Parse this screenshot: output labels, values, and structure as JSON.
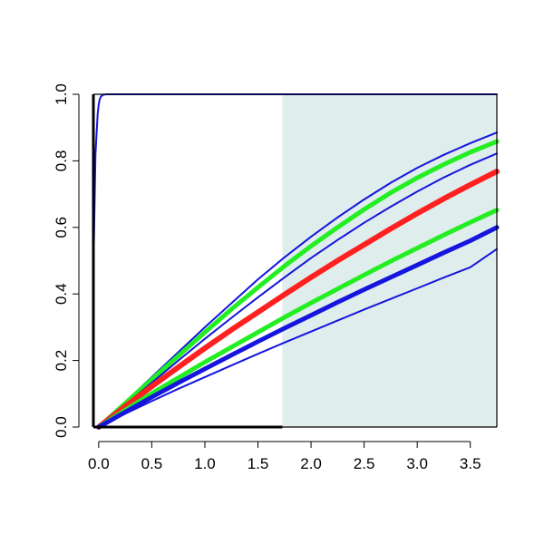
{
  "chart_data": {
    "type": "line",
    "title": "",
    "xlabel": "",
    "ylabel": "",
    "xlim": [
      -0.05,
      3.75
    ],
    "ylim": [
      0,
      1
    ],
    "x_ticks": [
      0,
      0.5,
      1,
      1.5,
      2,
      2.5,
      3,
      3.5
    ],
    "x_tick_labels": [
      "0.0",
      "0.5",
      "1.0",
      "1.5",
      "2.0",
      "2.5",
      "3.0",
      "3.5"
    ],
    "y_ticks": [
      0,
      0.2,
      0.4,
      0.6,
      0.8,
      1
    ],
    "y_tick_labels": [
      "0.0",
      "0.2",
      "0.4",
      "0.6",
      "0.8",
      "1.0"
    ],
    "shaded_region": {
      "x_from": 1.73,
      "x_to": 3.75,
      "color": "#e0eded"
    },
    "grid": false,
    "legend": "none",
    "colors": {
      "red": "#ff2020",
      "green": "#22ee22",
      "blue": "#1515dd"
    },
    "series": [
      {
        "color": "blue",
        "width": 2,
        "x": [
          -0.05,
          -0.03,
          -0.01,
          0,
          0.01,
          0.02,
          0.04,
          0.07,
          0.1,
          0.2,
          3.75
        ],
        "y": [
          0.47,
          0.82,
          0.94,
          0.97,
          0.985,
          0.993,
          0.998,
          1,
          1,
          1,
          1
        ]
      },
      {
        "color": "blue",
        "width": 2,
        "x": [
          0,
          0.25,
          0.5,
          0.75,
          1,
          1.25,
          1.5,
          1.75,
          2,
          2.25,
          2.5,
          2.75,
          3,
          3.25,
          3.5,
          3.75
        ],
        "y": [
          0,
          0.075,
          0.15,
          0.225,
          0.3,
          0.372,
          0.444,
          0.51,
          0.572,
          0.63,
          0.684,
          0.734,
          0.779,
          0.818,
          0.853,
          0.885
        ]
      },
      {
        "color": "green",
        "width": 5,
        "x": [
          0,
          0.25,
          0.5,
          0.75,
          1,
          1.25,
          1.5,
          1.75,
          2,
          2.25,
          2.5,
          2.75,
          3,
          3.25,
          3.5,
          3.75
        ],
        "y": [
          0,
          0.071,
          0.143,
          0.214,
          0.285,
          0.354,
          0.42,
          0.484,
          0.544,
          0.6,
          0.654,
          0.704,
          0.749,
          0.789,
          0.826,
          0.858
        ]
      },
      {
        "color": "blue",
        "width": 2,
        "x": [
          0,
          0.25,
          0.5,
          0.75,
          1,
          1.25,
          1.5,
          1.75,
          2,
          2.25,
          2.5,
          2.75,
          3,
          3.25,
          3.5,
          3.75
        ],
        "y": [
          0,
          0.066,
          0.133,
          0.2,
          0.265,
          0.328,
          0.39,
          0.45,
          0.508,
          0.562,
          0.614,
          0.662,
          0.708,
          0.75,
          0.788,
          0.822
        ]
      },
      {
        "color": "red",
        "width": 6,
        "x": [
          0,
          0.25,
          0.5,
          0.75,
          1,
          1.25,
          1.5,
          1.75,
          2,
          2.25,
          2.5,
          2.75,
          3,
          3.25,
          3.5,
          3.75
        ],
        "y": [
          0,
          0.062,
          0.122,
          0.18,
          0.237,
          0.292,
          0.345,
          0.398,
          0.45,
          0.5,
          0.548,
          0.596,
          0.642,
          0.686,
          0.728,
          0.768
        ]
      },
      {
        "color": "green",
        "width": 5,
        "x": [
          0,
          0.25,
          0.5,
          0.75,
          1,
          1.25,
          1.5,
          1.75,
          2,
          2.25,
          2.5,
          2.75,
          3,
          3.25,
          3.5,
          3.75
        ],
        "y": [
          0,
          0.051,
          0.101,
          0.148,
          0.195,
          0.24,
          0.285,
          0.33,
          0.373,
          0.415,
          0.457,
          0.498,
          0.538,
          0.577,
          0.615,
          0.652
        ]
      },
      {
        "color": "blue",
        "width": 5,
        "x": [
          0,
          0.25,
          0.5,
          0.75,
          1,
          1.25,
          1.5,
          1.75,
          2,
          2.25,
          2.5,
          2.75,
          3,
          3.25,
          3.5,
          3.75
        ],
        "y": [
          0,
          0.045,
          0.09,
          0.133,
          0.175,
          0.216,
          0.257,
          0.297,
          0.336,
          0.375,
          0.413,
          0.45,
          0.487,
          0.524,
          0.56,
          0.6
        ]
      },
      {
        "color": "blue",
        "width": 2,
        "x": [
          0,
          0.25,
          0.5,
          0.75,
          1,
          1.25,
          1.5,
          1.75,
          2,
          2.25,
          2.5,
          2.75,
          3,
          3.25,
          3.5,
          3.75
        ],
        "y": [
          0,
          0.04,
          0.078,
          0.115,
          0.15,
          0.185,
          0.22,
          0.254,
          0.287,
          0.32,
          0.353,
          0.385,
          0.417,
          0.449,
          0.48,
          0.535
        ]
      }
    ]
  }
}
